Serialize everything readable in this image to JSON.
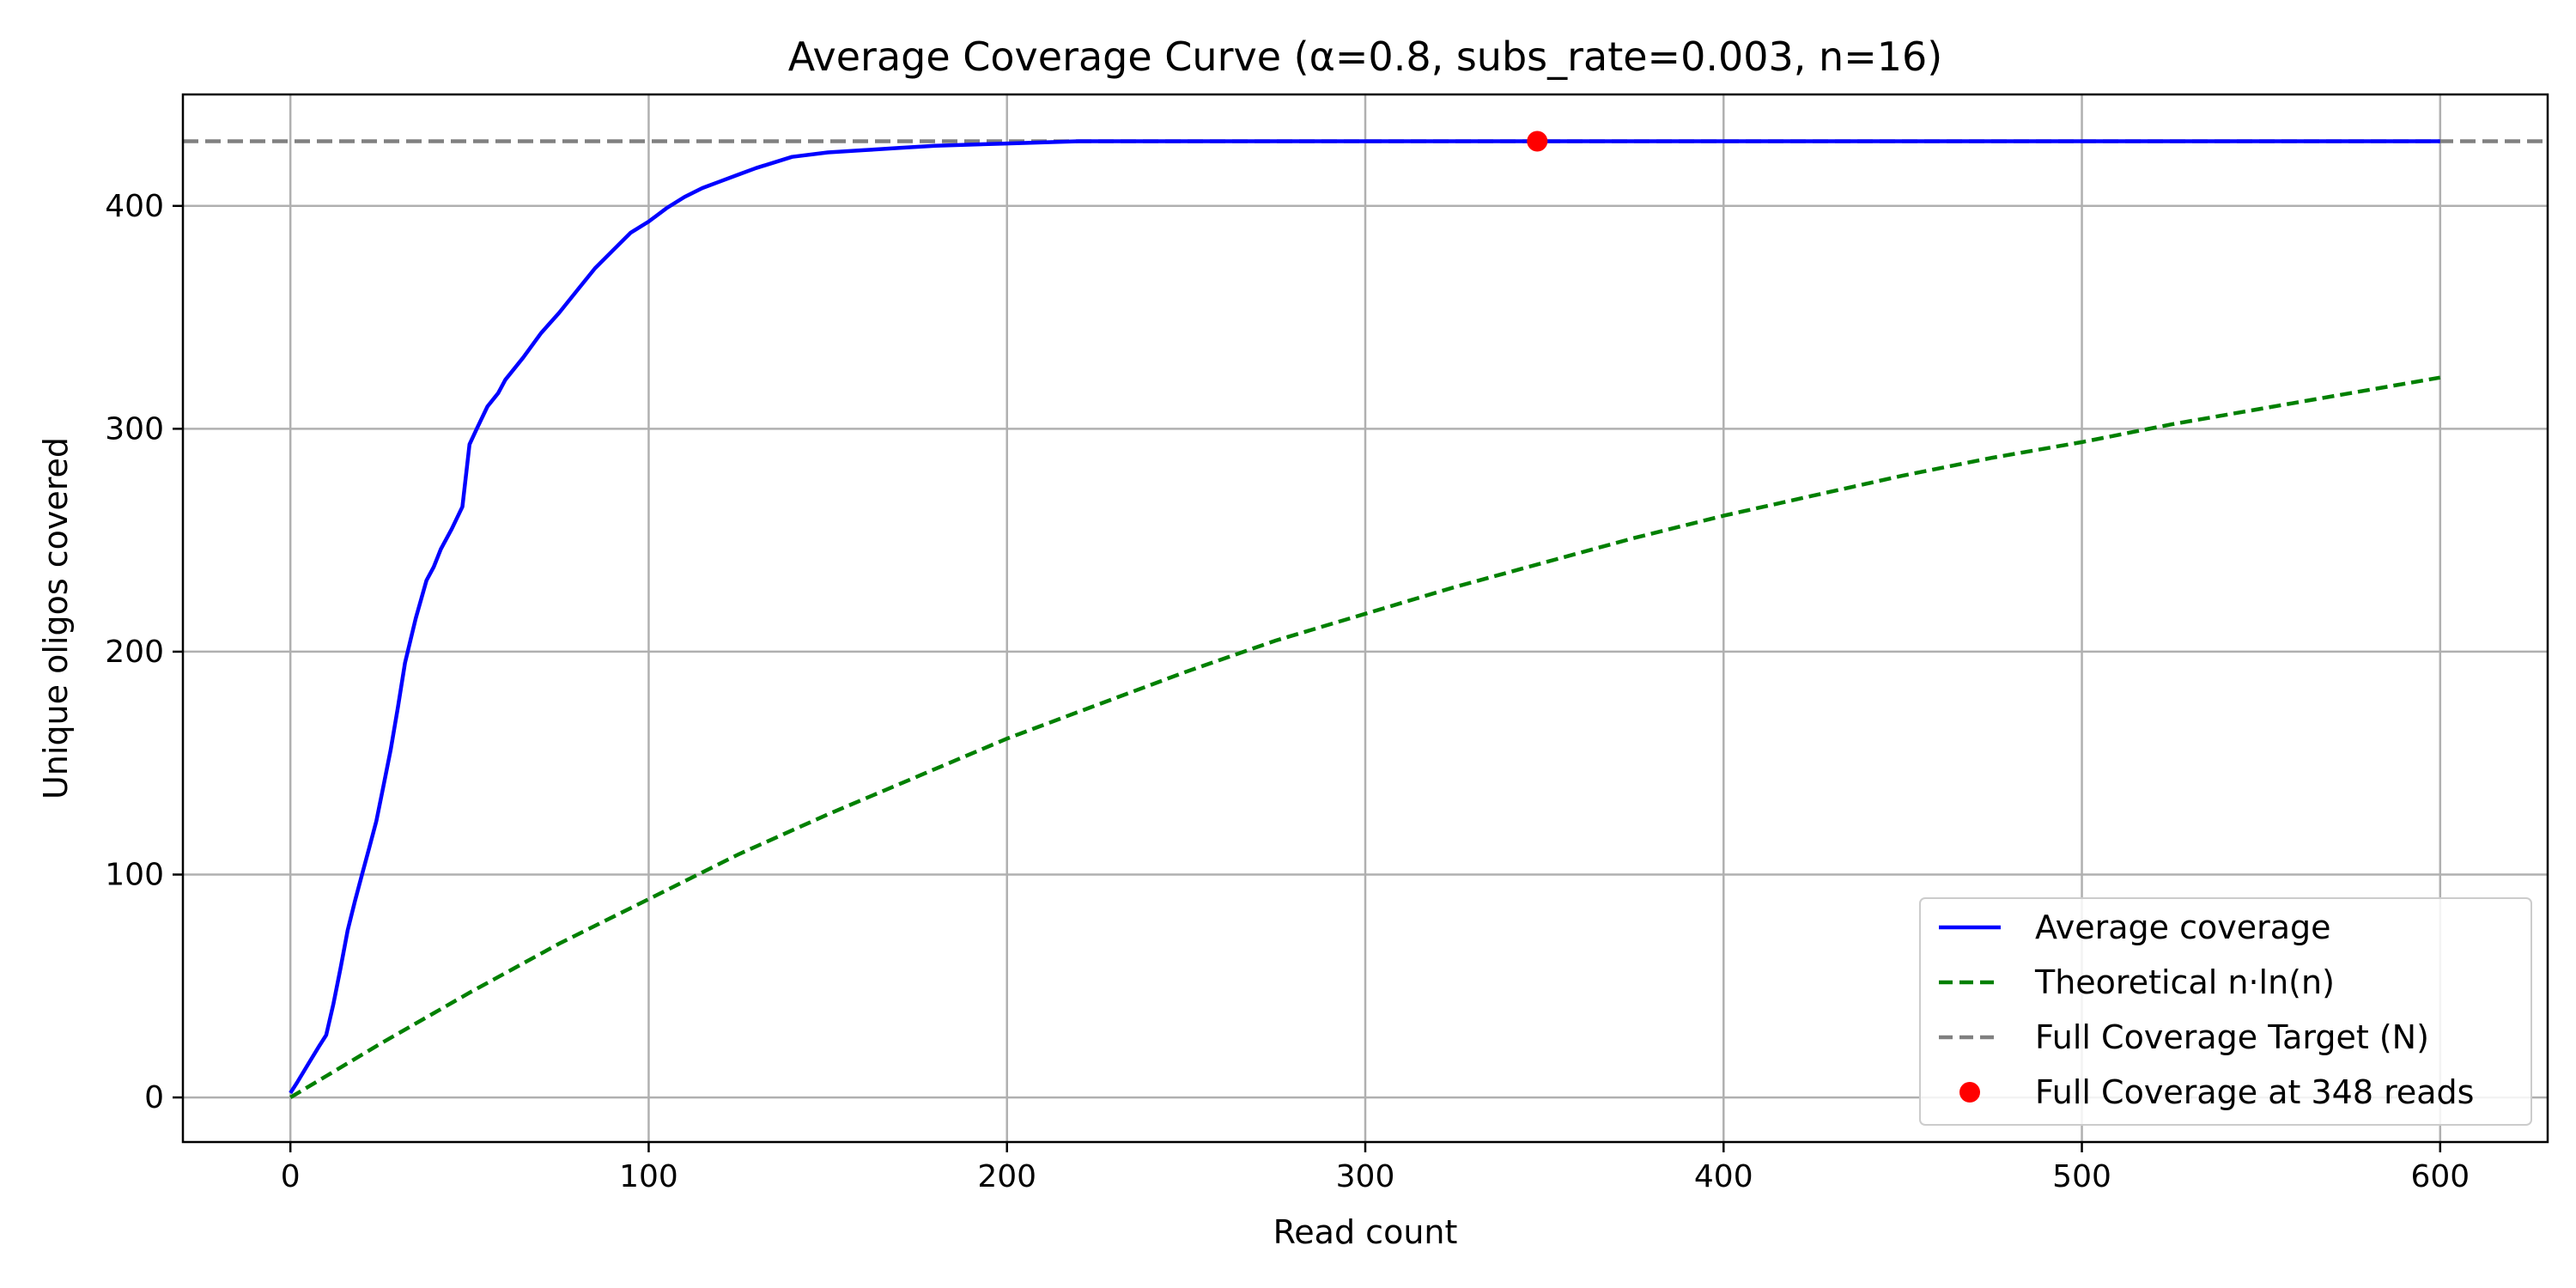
{
  "chart_data": {
    "type": "line",
    "title": "Average Coverage Curve (α=0.8, subs_rate=0.003, n=16)",
    "xlabel": "Read count",
    "ylabel": "Unique oligos covered",
    "xlim": [
      -30,
      630
    ],
    "ylim": [
      -20,
      450
    ],
    "xticks": [
      0,
      100,
      200,
      300,
      400,
      500,
      600
    ],
    "yticks": [
      0,
      100,
      200,
      300,
      400
    ],
    "grid": true,
    "legend_position": "bottom-right",
    "series": [
      {
        "name": "Average coverage",
        "style": "solid",
        "color": "#0000ff",
        "x": [
          0,
          2,
          5,
          8,
          10,
          12,
          14,
          16,
          18,
          20,
          22,
          24,
          26,
          28,
          30,
          32,
          35,
          38,
          40,
          42,
          45,
          48,
          50,
          52,
          55,
          58,
          60,
          65,
          70,
          75,
          80,
          85,
          90,
          95,
          100,
          105,
          110,
          115,
          120,
          125,
          130,
          140,
          150,
          160,
          170,
          180,
          200,
          220,
          250,
          300,
          348,
          400,
          450,
          500,
          550,
          600
        ],
        "y": [
          2,
          7,
          15,
          23,
          28,
          42,
          58,
          75,
          88,
          100,
          112,
          124,
          140,
          156,
          175,
          195,
          215,
          232,
          238,
          246,
          255,
          265,
          293,
          300,
          310,
          316,
          322,
          332,
          343,
          352,
          362,
          372,
          380,
          388,
          393,
          399,
          404,
          408,
          411,
          414,
          417,
          422,
          424,
          425,
          426,
          427,
          428,
          429,
          429,
          429,
          429,
          429,
          429,
          429,
          429,
          429
        ]
      },
      {
        "name": "Theoretical n·ln(n)",
        "style": "dashed",
        "color": "#008000",
        "x": [
          0,
          25,
          50,
          75,
          100,
          125,
          150,
          175,
          200,
          225,
          250,
          275,
          300,
          325,
          350,
          375,
          400,
          425,
          450,
          475,
          500,
          525,
          550,
          575,
          600
        ],
        "y": [
          0,
          24,
          47,
          69,
          89,
          109,
          127,
          144,
          161,
          176,
          191,
          205,
          217,
          229,
          240,
          251,
          261,
          270,
          279,
          287,
          294,
          302,
          309,
          316,
          323
        ]
      },
      {
        "name": "Full Coverage Target (N)",
        "style": "dashed",
        "color": "#808080",
        "y_const": 429
      },
      {
        "name": "Full Coverage at 348 reads",
        "style": "marker",
        "color": "#ff0000",
        "x": [
          348
        ],
        "y": [
          429
        ]
      }
    ]
  }
}
